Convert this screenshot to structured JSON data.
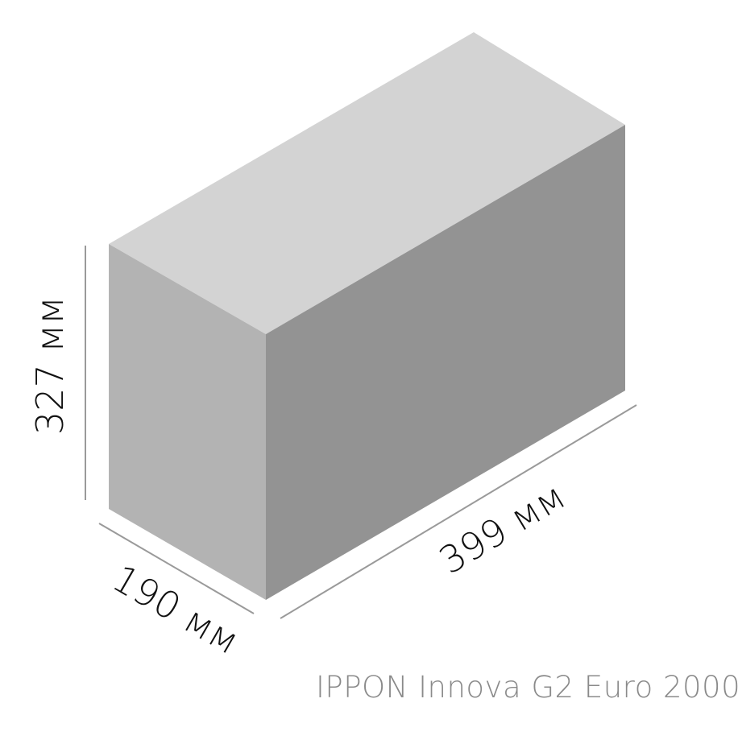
{
  "diagram": {
    "dimensions": {
      "height": "327 мм",
      "width": "399 мм",
      "depth": "190 мм"
    },
    "colors": {
      "top_face": "#d3d3d3",
      "front_face": "#b3b3b3",
      "side_face": "#939393",
      "line": "#9a9a9a"
    }
  },
  "caption": "IPPON Innova G2 Euro 2000"
}
